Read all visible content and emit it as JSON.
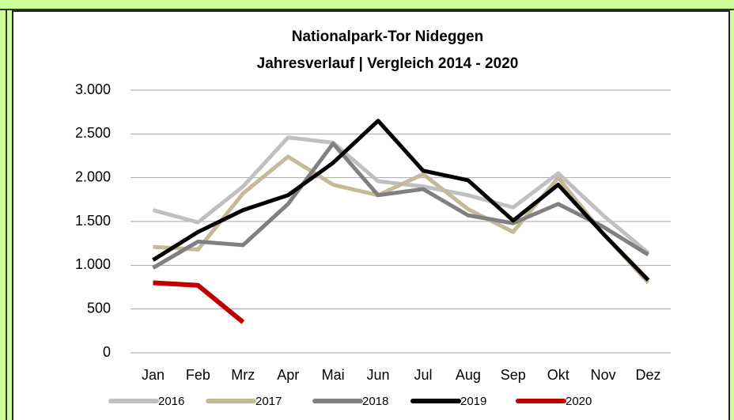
{
  "chart_data": {
    "type": "line",
    "title": "Nationalpark-Tor Nideggen",
    "subtitle": "Jahresverlauf | Vergleich 2014 - 2020",
    "categories": [
      "Jan",
      "Feb",
      "Mrz",
      "Apr",
      "Mai",
      "Jun",
      "Jul",
      "Aug",
      "Sep",
      "Okt",
      "Nov",
      "Dez"
    ],
    "series": [
      {
        "name": "2016",
        "color": "#c0c0c0",
        "values": [
          1630,
          1490,
          1900,
          2460,
          2400,
          1960,
          1900,
          1800,
          1660,
          2050,
          1570,
          1140
        ]
      },
      {
        "name": "2017",
        "color": "#c4ba98",
        "values": [
          1210,
          1180,
          1820,
          2240,
          1920,
          1800,
          2040,
          1640,
          1380,
          2000,
          1360,
          800
        ]
      },
      {
        "name": "2018",
        "color": "#808080",
        "values": [
          970,
          1270,
          1230,
          1700,
          2390,
          1800,
          1870,
          1570,
          1480,
          1700,
          1440,
          1120
        ]
      },
      {
        "name": "2019",
        "color": "#000000",
        "values": [
          1060,
          1380,
          1630,
          1800,
          2170,
          2650,
          2080,
          1970,
          1510,
          1920,
          1360,
          830
        ]
      },
      {
        "name": "2020",
        "color": "#c00000",
        "values": [
          800,
          770,
          350,
          null,
          null,
          null,
          null,
          null,
          null,
          null,
          null,
          null
        ]
      }
    ],
    "ylim": [
      0,
      3000
    ],
    "yticks": [
      0,
      500,
      {
        "value": 1000,
        "label": "1.000"
      },
      {
        "value": 1500,
        "label": "1.500"
      },
      {
        "value": 2000,
        "label": "2.000"
      },
      {
        "value": 2500,
        "label": "2.500"
      },
      {
        "value": 3000,
        "label": "3.000"
      }
    ],
    "grid": true,
    "legend": "bottom"
  }
}
